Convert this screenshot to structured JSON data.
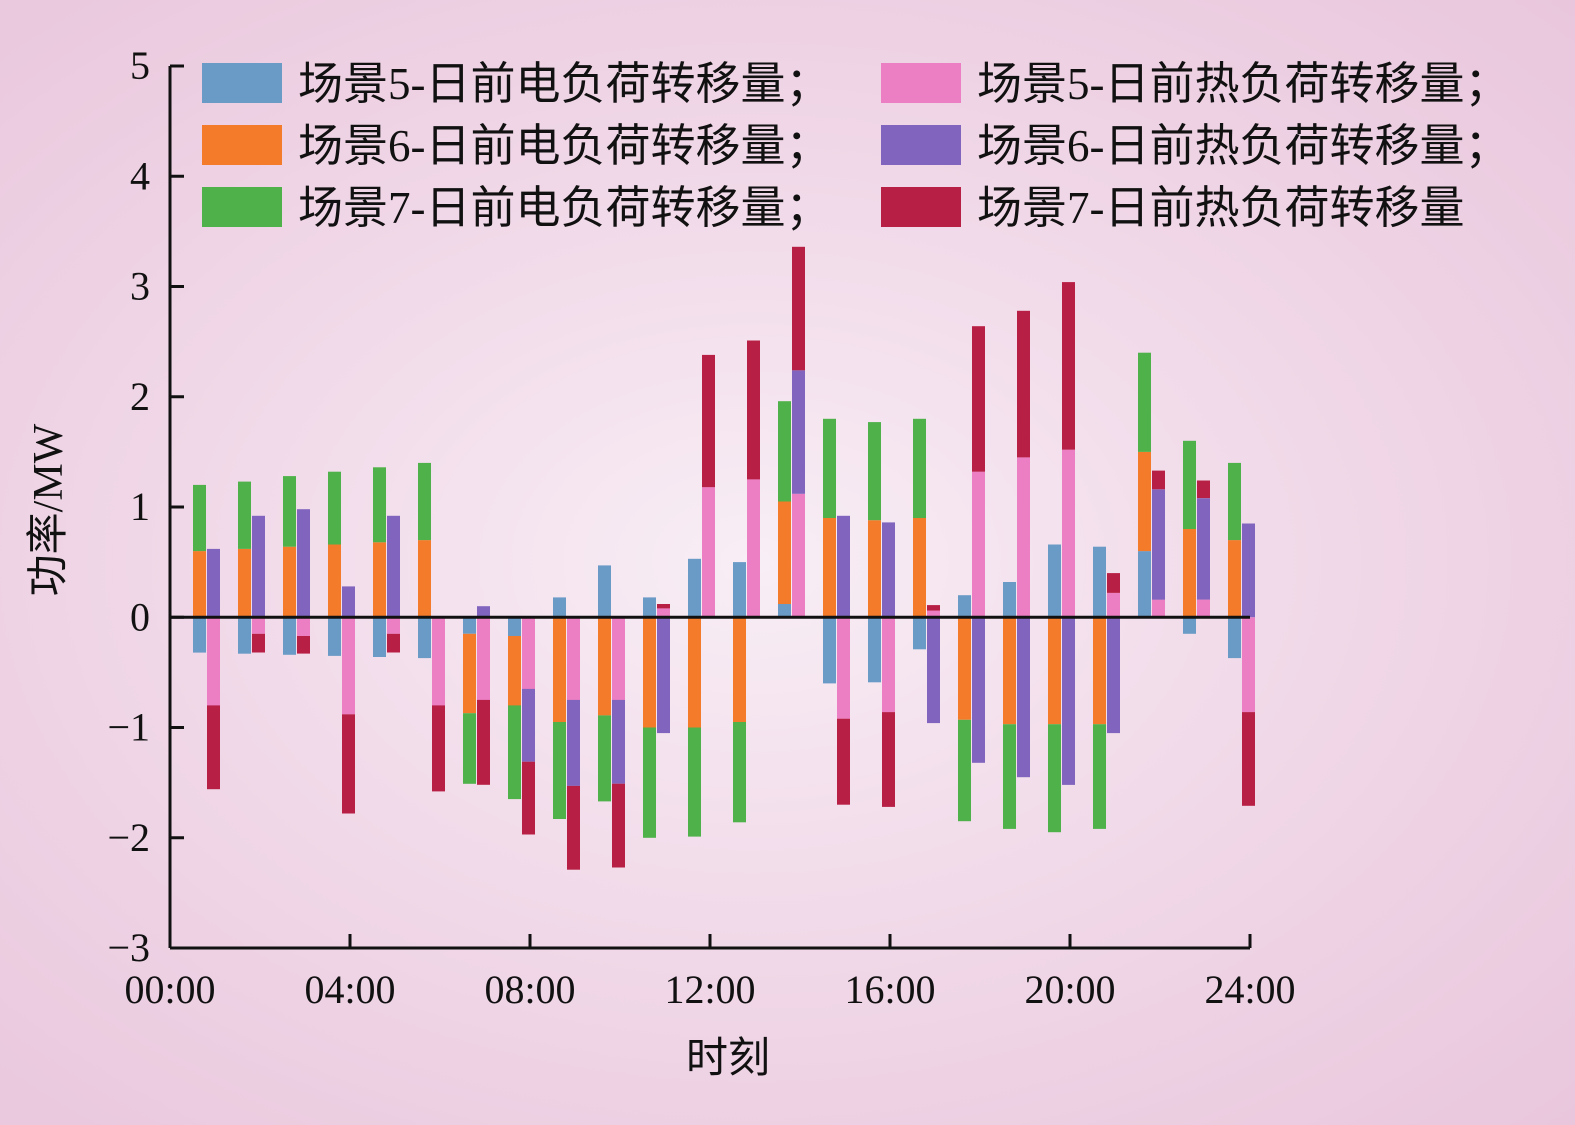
{
  "chart_data": {
    "type": "bar",
    "stacked": true,
    "xlabel": "时刻",
    "ylabel": "功率/MW",
    "ylim": [
      -3,
      5
    ],
    "yticks": [
      "−3",
      "−2",
      "−1",
      "0",
      "1",
      "2",
      "3",
      "4",
      "5"
    ],
    "xlim": [
      0,
      24
    ],
    "xticks": [
      "00:00",
      "04:00",
      "08:00",
      "12:00",
      "16:00",
      "20:00",
      "24:00"
    ],
    "hours": [
      1,
      2,
      3,
      4,
      5,
      6,
      7,
      8,
      9,
      10,
      11,
      12,
      13,
      14,
      15,
      16,
      17,
      18,
      19,
      20,
      21,
      22,
      23,
      24
    ],
    "grid": false,
    "legend_position": "top",
    "groups": [
      {
        "name": "electric",
        "series": [
          {
            "name": "场景5-日前电负荷转移量；",
            "color": "#6a9bc6",
            "values": [
              -0.32,
              -0.33,
              -0.34,
              -0.35,
              -0.36,
              -0.37,
              -0.15,
              -0.17,
              0.18,
              0.47,
              0.18,
              0.53,
              0.5,
              0.12,
              -0.6,
              -0.59,
              -0.29,
              0.2,
              0.32,
              0.66,
              0.64,
              0.6,
              -0.15,
              -0.37
            ]
          },
          {
            "name": "场景6-日前电负荷转移量；",
            "color": "#f47b2a",
            "values": [
              0.6,
              0.62,
              0.64,
              0.66,
              0.68,
              0.7,
              -0.72,
              -0.63,
              -0.95,
              -0.89,
              -1.0,
              -1.0,
              -0.95,
              0.93,
              0.9,
              0.88,
              0.9,
              -0.93,
              -0.97,
              -0.97,
              -0.97,
              0.9,
              0.8,
              0.7
            ]
          },
          {
            "name": "场景7-日前电负荷转移量；",
            "color": "#4fb14a",
            "values": [
              0.6,
              0.61,
              0.64,
              0.66,
              0.68,
              0.7,
              -0.64,
              -0.85,
              -0.88,
              -0.78,
              -1.0,
              -0.99,
              -0.91,
              0.91,
              0.9,
              0.89,
              0.9,
              -0.92,
              -0.95,
              -0.98,
              -0.95,
              0.9,
              0.8,
              0.7
            ]
          }
        ]
      },
      {
        "name": "heat",
        "series": [
          {
            "name": "场景5-日前热负荷转移量；",
            "color": "#ec7fc4",
            "values": [
              -0.8,
              -0.15,
              -0.17,
              -0.88,
              -0.15,
              -0.8,
              -0.75,
              -0.65,
              -0.75,
              -0.75,
              0.08,
              1.18,
              1.25,
              1.12,
              -0.92,
              -0.86,
              0.06,
              1.32,
              1.45,
              1.52,
              0.22,
              0.16,
              0.16,
              -0.86
            ]
          },
          {
            "name": "场景6-日前热负荷转移量；",
            "color": "#8064bd",
            "values": [
              0.62,
              0.92,
              0.98,
              0.28,
              0.92,
              0.0,
              0.1,
              -0.66,
              -0.78,
              -0.76,
              -1.05,
              0.0,
              0.0,
              1.12,
              0.92,
              0.86,
              -0.96,
              -1.32,
              -1.45,
              -1.52,
              -1.05,
              1.0,
              0.92,
              0.85
            ]
          },
          {
            "name": "场景7-日前热负荷转移量",
            "color": "#b81f45",
            "values": [
              -0.76,
              -0.17,
              -0.16,
              -0.9,
              -0.17,
              -0.78,
              -0.77,
              -0.66,
              -0.76,
              -0.76,
              0.04,
              1.2,
              1.26,
              1.12,
              -0.78,
              -0.86,
              0.05,
              1.32,
              1.33,
              1.52,
              0.18,
              0.17,
              0.16,
              -0.85
            ]
          }
        ]
      }
    ]
  }
}
